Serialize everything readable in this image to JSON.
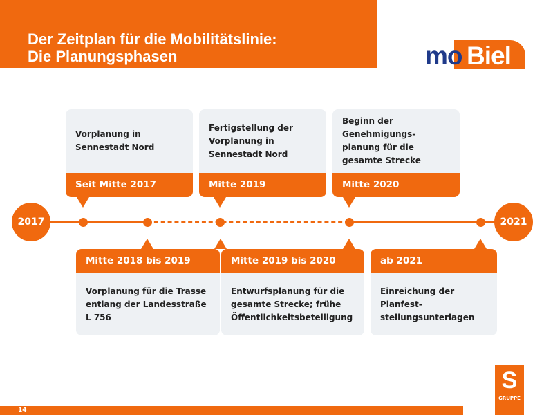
{
  "title": {
    "line1": "Der Zeitplan für die Mobilitätslinie:",
    "line2": "Die Planungsphasen"
  },
  "logo": {
    "text_mo": "mo",
    "text_biel": "Biel"
  },
  "timeline": {
    "start_year": "2017",
    "end_year": "2021",
    "top_cards": [
      {
        "date": "Seit Mitte 2017",
        "text": "Vorplanung in Sennestadt Nord"
      },
      {
        "date": "Mitte 2019",
        "text": "Fertigstellung der Vorplanung in Sennestadt Nord"
      },
      {
        "date": "Mitte 2020",
        "text": "Beginn der Genehmigungs-planung für die gesamte Strecke"
      }
    ],
    "bottom_cards": [
      {
        "date": "Mitte 2018 bis 2019",
        "text": "Vorplanung für die Trasse entlang der Landesstraße L 756"
      },
      {
        "date": "Mitte 2019 bis 2020",
        "text": "Entwurfsplanung für die gesamte Strecke; frühe Öffentlichkeitsbeteiligung"
      },
      {
        "date": "ab 2021",
        "text": "Einreichung der Planfest-stellungsunterlagen"
      }
    ]
  },
  "gruppe_logo": {
    "text": "GRUPPE"
  },
  "footer": {
    "page_number": "14"
  },
  "colors": {
    "accent": "#f0690f",
    "card_bg": "#eef1f4",
    "logo_blue": "#1f3a8a"
  }
}
